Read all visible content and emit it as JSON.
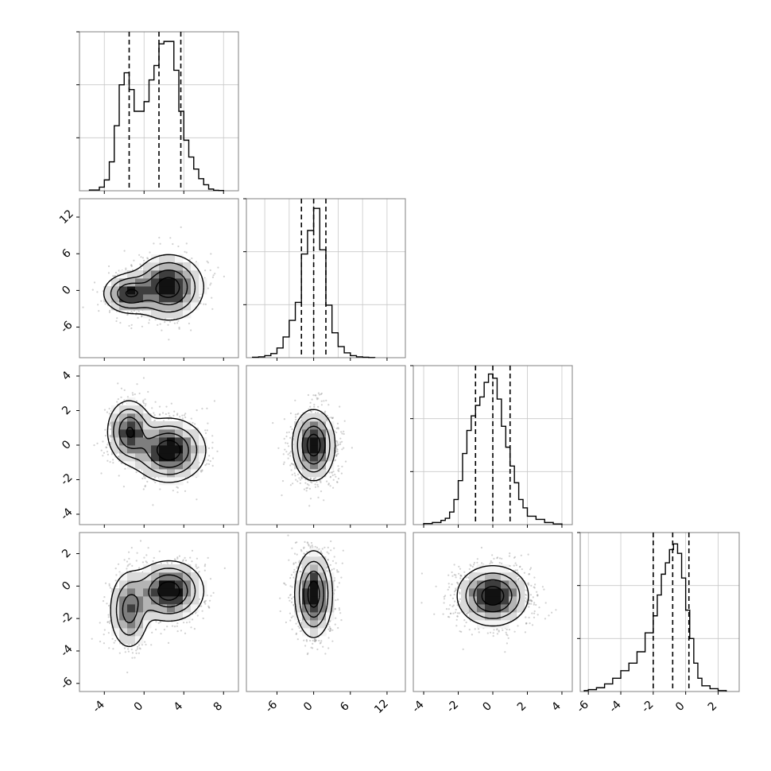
{
  "figure": {
    "type": "corner",
    "grid": true,
    "quantiles_dashed": true,
    "colors": {
      "line": "#000000",
      "grid": "#c8c8c8",
      "frame": "#808080",
      "points": "#9a9a9a",
      "fill_shades": [
        "#f4f4f4",
        "#dadada",
        "#b4b4b4",
        "#7e7e7e",
        "#3e3e3e",
        "#111111"
      ]
    }
  },
  "chart_data": [
    {
      "type": "histogram",
      "panel": "hist-param-1",
      "row": 0,
      "col": 0,
      "xlim": [
        -6.5,
        9.5
      ],
      "bin_edges": [
        -5.5,
        -4.5,
        -4,
        -3.5,
        -3,
        -2.5,
        -2,
        -1.5,
        -1,
        -0.5,
        0,
        0.5,
        1,
        1.5,
        2,
        2.5,
        3,
        3.5,
        4,
        4.5,
        5,
        5.5,
        6,
        6.5,
        7,
        7.5,
        8
      ],
      "counts": [
        0.3,
        1.5,
        4.5,
        12,
        27,
        44,
        49,
        42,
        33,
        33,
        37,
        46,
        52,
        61,
        62,
        62,
        50,
        33,
        21,
        14,
        9,
        5,
        2.5,
        0.7,
        0.2,
        0.1
      ],
      "ylim": [
        0,
        66
      ],
      "quantiles": [
        -1.5,
        1.5,
        3.7
      ]
    },
    {
      "type": "scatter+contour",
      "panel": "joint-2-1",
      "row": 1,
      "col": 0,
      "xlim": [
        -6.5,
        9.5
      ],
      "ylim": [
        -11,
        15
      ],
      "blobs": [
        {
          "cx": -1.5,
          "cy": -0.5,
          "sx": 1.3,
          "sy": 1.6,
          "w": 0.45
        },
        {
          "cx": 2.5,
          "cy": 0.5,
          "sx": 1.7,
          "sy": 2.6,
          "w": 0.55
        }
      ],
      "yticks": [
        -6,
        0,
        6,
        12
      ]
    },
    {
      "type": "histogram",
      "panel": "hist-param-2",
      "row": 1,
      "col": 1,
      "xlim": [
        -11,
        15
      ],
      "bin_edges": [
        -10,
        -9,
        -8,
        -7,
        -6,
        -5,
        -4,
        -3,
        -2,
        -1,
        0,
        1,
        2,
        3,
        4,
        5,
        6,
        7,
        8,
        9,
        10
      ],
      "counts": [
        0.3,
        0.6,
        1.5,
        3,
        7,
        15,
        27,
        40,
        75,
        92,
        108,
        78,
        38,
        18,
        8,
        3.5,
        1.5,
        0.6,
        0.3,
        0.1
      ],
      "ylim": [
        0,
        115
      ],
      "quantiles": [
        -2,
        0,
        2
      ]
    },
    {
      "type": "scatter+contour",
      "panel": "joint-3-1",
      "row": 2,
      "col": 0,
      "xlim": [
        -6.5,
        9.5
      ],
      "ylim": [
        -4.6,
        4.6
      ],
      "blobs": [
        {
          "cx": -1.5,
          "cy": 0.8,
          "sx": 1.1,
          "sy": 0.9,
          "w": 0.45
        },
        {
          "cx": 2.5,
          "cy": -0.3,
          "sx": 1.8,
          "sy": 0.9,
          "w": 0.55
        }
      ],
      "yticks": [
        -4,
        -2,
        0,
        2,
        4
      ]
    },
    {
      "type": "scatter+contour",
      "panel": "joint-3-2",
      "row": 2,
      "col": 1,
      "xlim": [
        -11,
        15
      ],
      "ylim": [
        -4.6,
        4.6
      ],
      "blobs": [
        {
          "cx": 0,
          "cy": 0,
          "sx": 1.7,
          "sy": 1.0,
          "w": 1
        }
      ]
    },
    {
      "type": "histogram",
      "panel": "hist-param-3",
      "row": 2,
      "col": 2,
      "xlim": [
        -4.6,
        4.6
      ],
      "bin_edges": [
        -4,
        -3.5,
        -3,
        -2.75,
        -2.5,
        -2.25,
        -2,
        -1.75,
        -1.5,
        -1.25,
        -1,
        -0.75,
        -0.5,
        -0.25,
        0,
        0.25,
        0.5,
        0.75,
        1,
        1.25,
        1.5,
        1.75,
        2,
        2.5,
        3,
        3.5,
        4
      ],
      "counts": [
        0.5,
        1,
        2,
        3,
        6,
        12,
        21,
        34,
        45,
        52,
        57,
        61,
        68,
        72,
        70,
        60,
        47,
        37,
        28,
        20,
        12,
        8,
        4,
        2.5,
        1,
        0.3
      ],
      "ylim": [
        0,
        76
      ],
      "quantiles": [
        -1,
        0,
        1
      ]
    },
    {
      "type": "scatter+contour",
      "panel": "joint-4-1",
      "row": 3,
      "col": 0,
      "xlim": [
        -6.5,
        9.5
      ],
      "ylim": [
        -6.5,
        3.3
      ],
      "blobs": [
        {
          "cx": -1.5,
          "cy": -1.5,
          "sx": 1.0,
          "sy": 1.2,
          "w": 0.4
        },
        {
          "cx": 2.5,
          "cy": -0.3,
          "sx": 1.7,
          "sy": 0.9,
          "w": 0.6
        }
      ],
      "yticks": [
        -6,
        -4,
        -2,
        0,
        2
      ],
      "xticks": [
        -4,
        0,
        4,
        8
      ]
    },
    {
      "type": "scatter+contour",
      "panel": "joint-4-2",
      "row": 3,
      "col": 1,
      "xlim": [
        -11,
        15
      ],
      "ylim": [
        -6.5,
        3.3
      ],
      "blobs": [
        {
          "cx": 0,
          "cy": -0.5,
          "sx": 1.5,
          "sy": 1.3,
          "w": 1
        }
      ],
      "xticks": [
        -6,
        0,
        6,
        12
      ]
    },
    {
      "type": "scatter+contour",
      "panel": "joint-4-3",
      "row": 3,
      "col": 2,
      "xlim": [
        -4.6,
        4.6
      ],
      "ylim": [
        -6.5,
        3.3
      ],
      "blobs": [
        {
          "cx": 0,
          "cy": -0.6,
          "sx": 1.0,
          "sy": 0.9,
          "w": 1
        }
      ],
      "xticks": [
        -4,
        -2,
        0,
        2,
        4
      ]
    },
    {
      "type": "histogram",
      "panel": "hist-param-4",
      "row": 3,
      "col": 3,
      "xlim": [
        -6.5,
        3.3
      ],
      "bin_edges": [
        -6.25,
        -6,
        -5.5,
        -5,
        -4.5,
        -4,
        -3.5,
        -3,
        -2.5,
        -2,
        -1.75,
        -1.5,
        -1.25,
        -1,
        -0.75,
        -0.5,
        -0.25,
        0,
        0.25,
        0.5,
        0.75,
        1,
        1.5,
        2,
        2.5
      ],
      "counts": [
        0.5,
        1,
        2,
        4,
        7,
        11,
        15,
        21,
        31,
        40,
        51,
        62,
        68,
        75,
        78,
        73,
        60,
        43,
        28,
        15,
        7,
        3,
        1.5,
        0.5
      ],
      "ylim": [
        0,
        84
      ],
      "quantiles": [
        -2,
        -0.8,
        0.2
      ],
      "xticks": [
        -6,
        -4,
        -2,
        0,
        2
      ]
    }
  ],
  "tick_labels": {
    "row1_y": [
      "-6",
      "0",
      "6",
      "12"
    ],
    "row2_y": [
      "-4",
      "-2",
      "0",
      "2",
      "4"
    ],
    "row3_y": [
      "-6",
      "-4",
      "-2",
      "0",
      "2"
    ],
    "col0_x": [
      "-4",
      "0",
      "4",
      "8"
    ],
    "col1_x": [
      "-6",
      "0",
      "6",
      "12"
    ],
    "col2_x": [
      "-4",
      "-2",
      "0",
      "2",
      "4"
    ],
    "col3_x": [
      "-6",
      "-4",
      "-2",
      "0",
      "2"
    ]
  }
}
